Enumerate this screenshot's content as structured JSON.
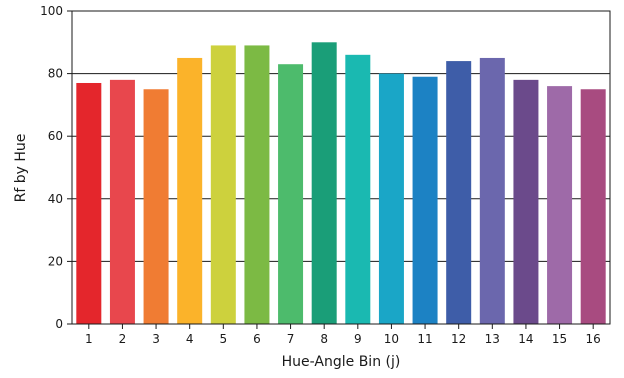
{
  "chart_data": {
    "type": "bar",
    "title": "",
    "xlabel": "Hue-Angle Bin (j)",
    "ylabel": "Rf by Hue",
    "ylim": [
      0,
      100
    ],
    "yticks": [
      0,
      20,
      40,
      60,
      80,
      100
    ],
    "grid": true,
    "categories": [
      "1",
      "2",
      "3",
      "4",
      "5",
      "6",
      "7",
      "8",
      "9",
      "10",
      "11",
      "12",
      "13",
      "14",
      "15",
      "16"
    ],
    "values": [
      77,
      78,
      75,
      85,
      89,
      89,
      83,
      90,
      86,
      80,
      79,
      84,
      85,
      78,
      76,
      75
    ],
    "colors": [
      "#e4262c",
      "#e8474d",
      "#f07c33",
      "#fbb32a",
      "#cdd13d",
      "#7cba44",
      "#4dbb6c",
      "#1a9e78",
      "#1ab9b1",
      "#1aa6c7",
      "#1c82c4",
      "#3e5da8",
      "#6b67ad",
      "#6b4a8b",
      "#9e6aa8",
      "#a84b80"
    ]
  }
}
